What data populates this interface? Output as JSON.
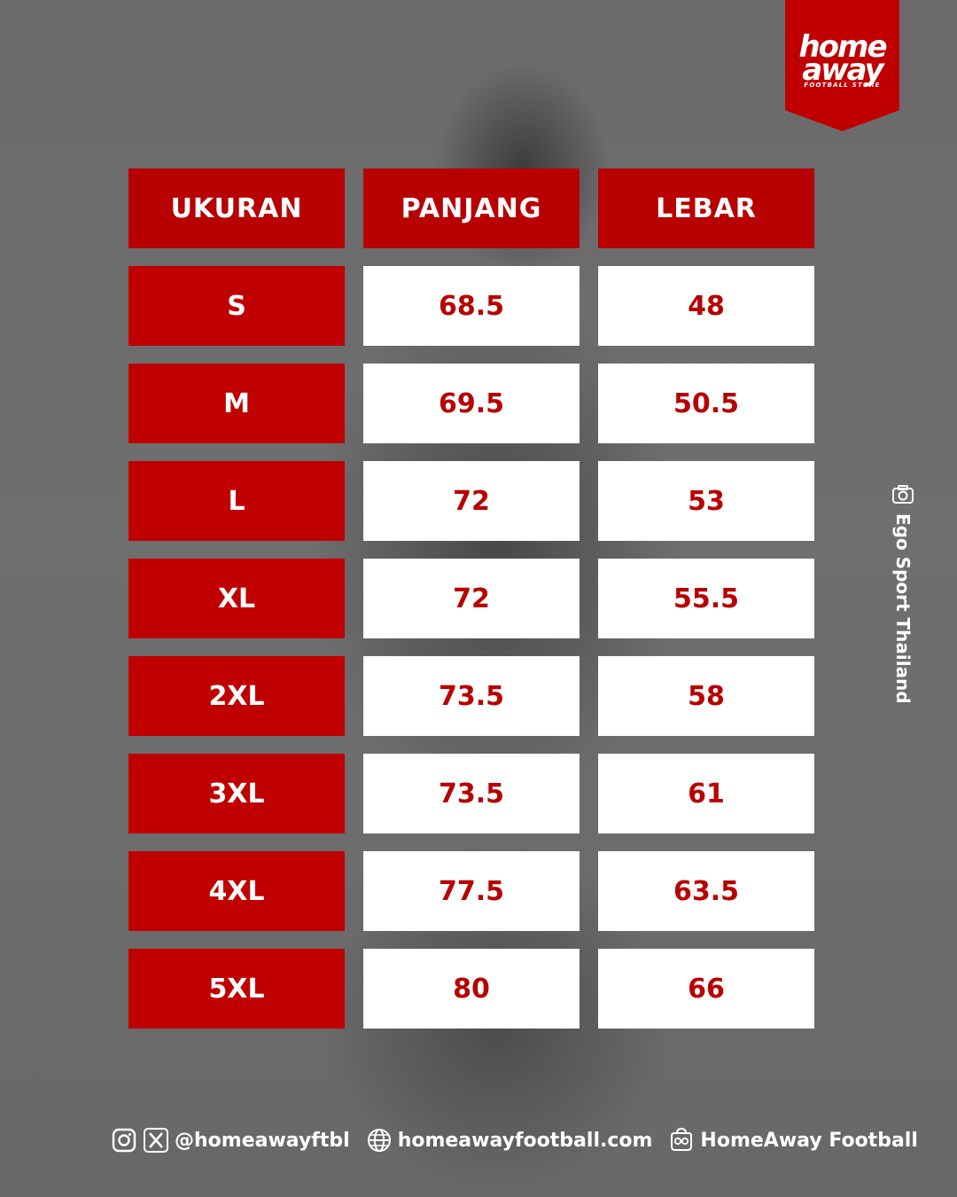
{
  "brand": {
    "logo_line1": "home",
    "logo_line2": "away",
    "logo_sub": "FOOTBALL STORE"
  },
  "photo_credit": "Ego Sport Thailand",
  "table": {
    "headers": [
      "UKURAN",
      "PANJANG",
      "LEBAR"
    ],
    "rows": [
      {
        "size": "S",
        "panjang": "68.5",
        "lebar": "48"
      },
      {
        "size": "M",
        "panjang": "69.5",
        "lebar": "50.5"
      },
      {
        "size": "L",
        "panjang": "72",
        "lebar": "53"
      },
      {
        "size": "XL",
        "panjang": "72",
        "lebar": "55.5"
      },
      {
        "size": "2XL",
        "panjang": "73.5",
        "lebar": "58"
      },
      {
        "size": "3XL",
        "panjang": "73.5",
        "lebar": "61"
      },
      {
        "size": "4XL",
        "panjang": "77.5",
        "lebar": "63.5"
      },
      {
        "size": "5XL",
        "panjang": "80",
        "lebar": "66"
      }
    ]
  },
  "footer": {
    "social_handle": "@homeawayftbl",
    "website": "homeawayfootball.com",
    "store_name": "HomeAway Football"
  },
  "colors": {
    "brand_red": "#c00000",
    "header_red": "#b80000",
    "value_text": "#b80000"
  }
}
